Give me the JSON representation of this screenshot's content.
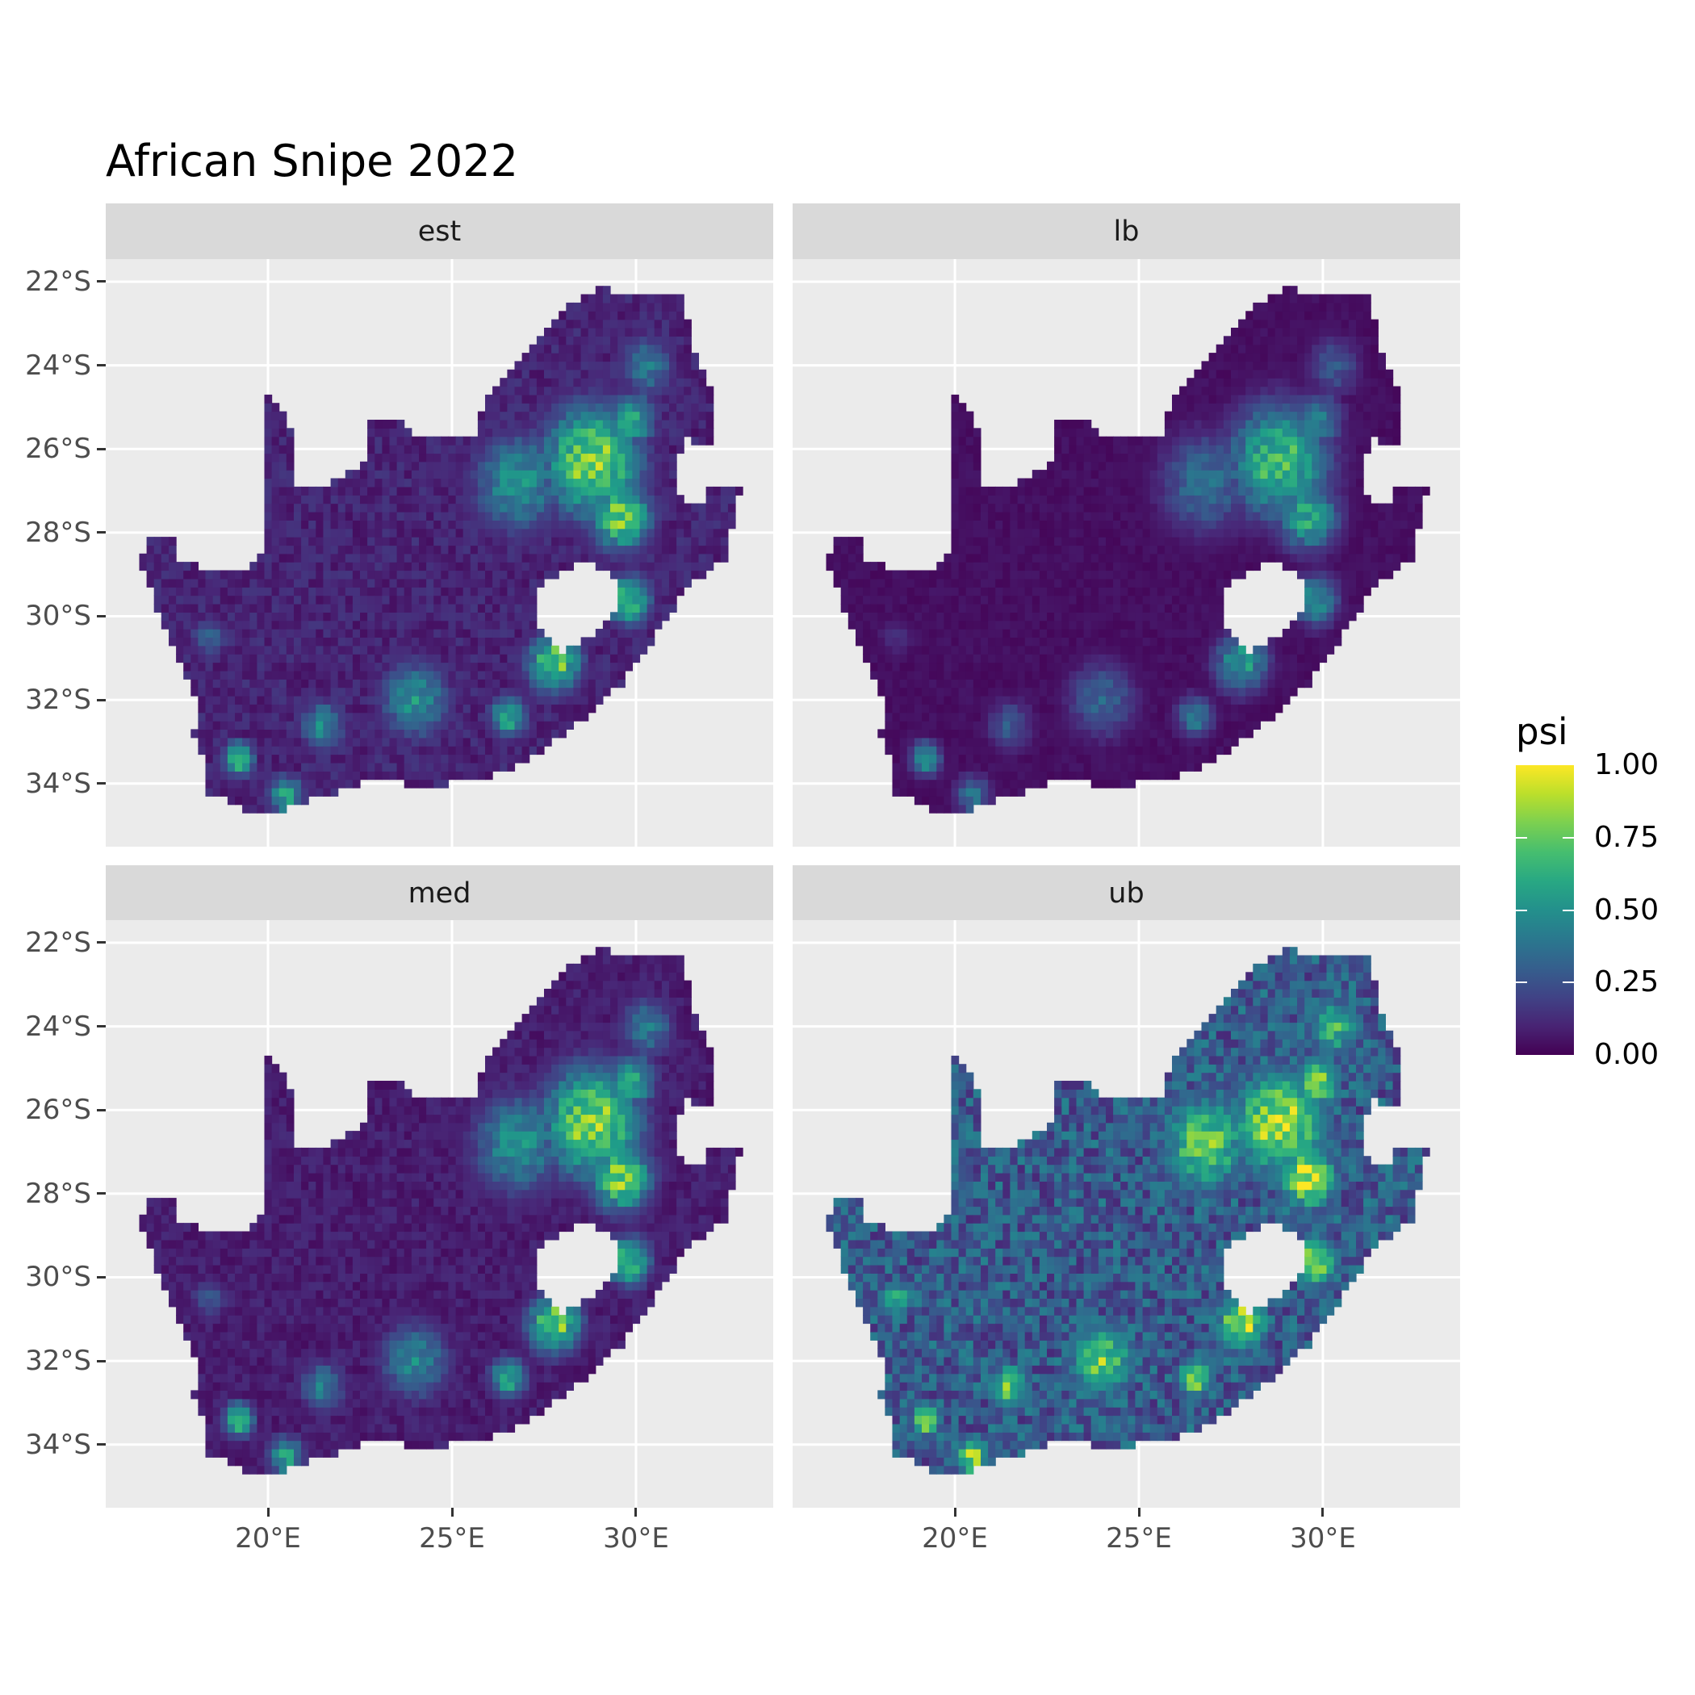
{
  "title": "African Snipe 2022",
  "chart_data": {
    "type": "heatmap",
    "title": "African Snipe 2022",
    "facets": [
      "est",
      "lb",
      "med",
      "ub"
    ],
    "x_ticks": [
      "20°E",
      "25°E",
      "30°E"
    ],
    "x_tick_values": [
      20,
      25,
      30
    ],
    "y_ticks": [
      "22°S",
      "24°S",
      "26°S",
      "28°S",
      "30°S",
      "32°S",
      "34°S"
    ],
    "y_tick_values": [
      -22,
      -24,
      -26,
      -28,
      -30,
      -32,
      -34
    ],
    "xlim": [
      15.59,
      33.73
    ],
    "ylim": [
      -35.51,
      -21.46
    ],
    "grid": true,
    "colormap": "viridis",
    "legend": {
      "title": "psi",
      "labels": [
        "1.00",
        "0.75",
        "0.50",
        "0.25",
        "0.00"
      ],
      "values": [
        1.0,
        0.75,
        0.5,
        0.25,
        0.0
      ],
      "range": [
        0,
        1
      ],
      "placement": "right"
    },
    "region_outline_lonlat": [
      [
        16.45,
        -28.6
      ],
      [
        16.9,
        -28.05
      ],
      [
        17.4,
        -28.1
      ],
      [
        17.6,
        -28.7
      ],
      [
        18.5,
        -28.9
      ],
      [
        19.3,
        -28.9
      ],
      [
        19.95,
        -28.4
      ],
      [
        20.0,
        -24.75
      ],
      [
        20.4,
        -25.1
      ],
      [
        20.8,
        -25.9
      ],
      [
        20.6,
        -26.5
      ],
      [
        20.7,
        -26.85
      ],
      [
        21.7,
        -26.85
      ],
      [
        22.6,
        -26.3
      ],
      [
        22.8,
        -25.3
      ],
      [
        23.5,
        -25.3
      ],
      [
        24.0,
        -25.65
      ],
      [
        25.0,
        -25.7
      ],
      [
        25.6,
        -25.6
      ],
      [
        25.9,
        -24.7
      ],
      [
        26.5,
        -24.3
      ],
      [
        27.0,
        -23.6
      ],
      [
        28.0,
        -22.6
      ],
      [
        28.9,
        -22.15
      ],
      [
        29.9,
        -22.3
      ],
      [
        31.3,
        -22.4
      ],
      [
        31.5,
        -23.5
      ],
      [
        32.0,
        -24.6
      ],
      [
        32.0,
        -25.9
      ],
      [
        31.4,
        -25.75
      ],
      [
        31.1,
        -26.3
      ],
      [
        31.2,
        -27.2
      ],
      [
        31.9,
        -27.3
      ],
      [
        32.0,
        -26.85
      ],
      [
        32.9,
        -26.85
      ],
      [
        32.6,
        -27.8
      ],
      [
        32.4,
        -28.6
      ],
      [
        31.3,
        -29.4
      ],
      [
        30.3,
        -30.8
      ],
      [
        29.6,
        -31.6
      ],
      [
        28.5,
        -32.5
      ],
      [
        27.4,
        -33.2
      ],
      [
        26.4,
        -33.7
      ],
      [
        25.7,
        -34.0
      ],
      [
        25.0,
        -33.95
      ],
      [
        24.4,
        -34.1
      ],
      [
        23.4,
        -33.95
      ],
      [
        22.5,
        -34.0
      ],
      [
        21.5,
        -34.3
      ],
      [
        20.6,
        -34.5
      ],
      [
        20.0,
        -34.8
      ],
      [
        19.3,
        -34.6
      ],
      [
        18.8,
        -34.3
      ],
      [
        18.4,
        -34.3
      ],
      [
        18.3,
        -33.5
      ],
      [
        17.9,
        -32.8
      ],
      [
        18.2,
        -32.3
      ],
      [
        17.3,
        -30.5
      ],
      [
        16.45,
        -28.6
      ]
    ],
    "hole_outline_lonlat": [
      [
        28.6,
        -28.6
      ],
      [
        29.4,
        -29.0
      ],
      [
        29.4,
        -29.8
      ],
      [
        28.9,
        -30.4
      ],
      [
        28.0,
        -30.8
      ],
      [
        27.2,
        -30.2
      ],
      [
        27.4,
        -29.3
      ],
      [
        28.1,
        -28.9
      ],
      [
        28.6,
        -28.6
      ]
    ],
    "cell_size_deg": 0.2,
    "background_psi": {
      "est": 0.1,
      "lb": 0.04,
      "med": 0.08,
      "ub": 0.28
    },
    "hotspots": [
      {
        "lon": 28.8,
        "lat": -26.3,
        "radius_deg": 1.3,
        "psi": {
          "est": 0.92,
          "lb": 0.78,
          "med": 0.93,
          "ub": 1.0
        }
      },
      {
        "lon": 29.6,
        "lat": -27.6,
        "radius_deg": 0.8,
        "psi": {
          "est": 0.85,
          "lb": 0.65,
          "med": 0.88,
          "ub": 1.0
        }
      },
      {
        "lon": 29.9,
        "lat": -25.3,
        "radius_deg": 0.6,
        "psi": {
          "est": 0.7,
          "lb": 0.5,
          "med": 0.7,
          "ub": 0.95
        }
      },
      {
        "lon": 26.8,
        "lat": -26.8,
        "radius_deg": 1.2,
        "psi": {
          "est": 0.55,
          "lb": 0.4,
          "med": 0.55,
          "ub": 0.85
        }
      },
      {
        "lon": 29.8,
        "lat": -29.6,
        "radius_deg": 0.6,
        "psi": {
          "est": 0.75,
          "lb": 0.55,
          "med": 0.75,
          "ub": 0.95
        }
      },
      {
        "lon": 27.8,
        "lat": -31.1,
        "radius_deg": 0.7,
        "psi": {
          "est": 0.85,
          "lb": 0.6,
          "med": 0.88,
          "ub": 1.0
        }
      },
      {
        "lon": 30.3,
        "lat": -24.0,
        "radius_deg": 0.7,
        "psi": {
          "est": 0.45,
          "lb": 0.3,
          "med": 0.45,
          "ub": 0.75
        }
      },
      {
        "lon": 24.0,
        "lat": -32.0,
        "radius_deg": 0.9,
        "psi": {
          "est": 0.55,
          "lb": 0.35,
          "med": 0.5,
          "ub": 0.85
        }
      },
      {
        "lon": 21.5,
        "lat": -32.6,
        "radius_deg": 0.6,
        "psi": {
          "est": 0.5,
          "lb": 0.3,
          "med": 0.45,
          "ub": 0.8
        }
      },
      {
        "lon": 26.5,
        "lat": -32.4,
        "radius_deg": 0.5,
        "psi": {
          "est": 0.65,
          "lb": 0.45,
          "med": 0.65,
          "ub": 0.9
        }
      },
      {
        "lon": 19.2,
        "lat": -33.4,
        "radius_deg": 0.4,
        "psi": {
          "est": 0.8,
          "lb": 0.6,
          "med": 0.8,
          "ub": 1.0
        }
      },
      {
        "lon": 20.5,
        "lat": -34.3,
        "radius_deg": 0.5,
        "psi": {
          "est": 0.6,
          "lb": 0.4,
          "med": 0.6,
          "ub": 0.9
        }
      },
      {
        "lon": 18.4,
        "lat": -30.5,
        "radius_deg": 0.5,
        "psi": {
          "est": 0.35,
          "lb": 0.15,
          "med": 0.3,
          "ub": 0.7
        }
      }
    ]
  }
}
